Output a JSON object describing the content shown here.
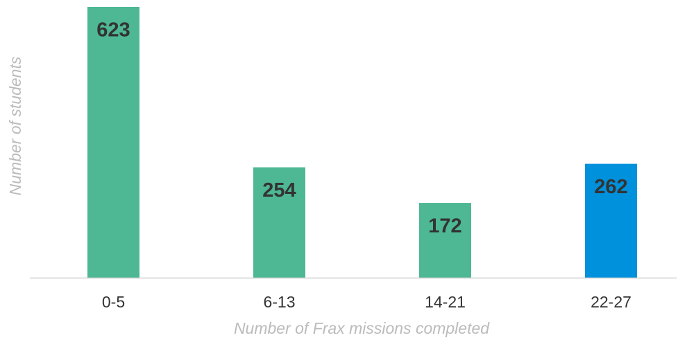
{
  "chart_data": {
    "type": "bar",
    "x_label": "Number of Frax missions completed",
    "y_label": "Number of students",
    "categories": [
      "0-5",
      "6-13",
      "14-21",
      "22-27"
    ],
    "values": [
      623,
      254,
      172,
      262
    ],
    "colors": [
      "#4db893",
      "#4db893",
      "#4db893",
      "#0091dc"
    ],
    "ylim": [
      0,
      623
    ]
  }
}
